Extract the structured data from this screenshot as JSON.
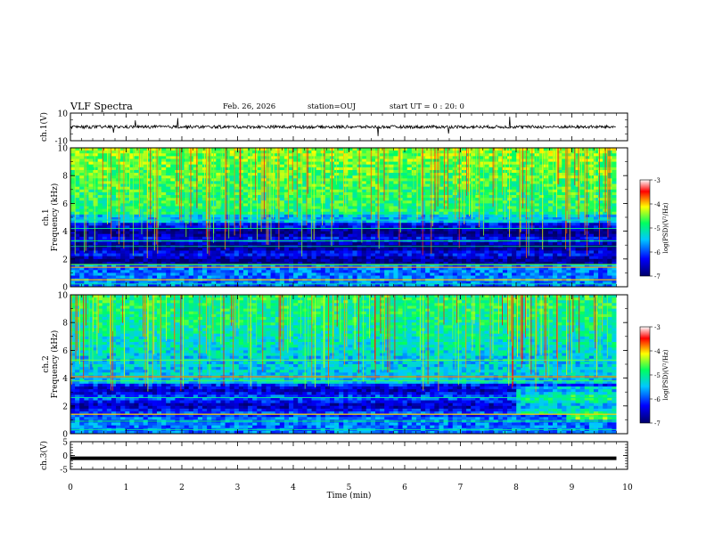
{
  "header": {
    "title": "VLF Spectra",
    "date": "Feb. 26, 2026",
    "station": "station=OUJ",
    "start": "start UT =  0 : 20: 0"
  },
  "chart_data": [
    {
      "id": "ch1-waveform",
      "type": "line",
      "ylabel": "ch.1(V)",
      "ylim": [
        -10,
        10
      ],
      "yticks": [
        10,
        -10
      ],
      "xlim": [
        0,
        10
      ],
      "baseline": 0,
      "note": "noisy waveform around 0 V with sparse spikes"
    },
    {
      "id": "ch1-spectrogram",
      "type": "heatmap",
      "ylabel": "ch.1\nFrequency (kHz)",
      "ylim": [
        0,
        10
      ],
      "yticks": [
        0,
        2,
        4,
        6,
        8,
        10
      ],
      "xlim": [
        0,
        10
      ],
      "data_end_min": 9.8,
      "colorbar": {
        "label": "log(PSD)(V²/Hz)",
        "range": [
          -7,
          -3
        ],
        "ticks": [
          -3,
          -4,
          -5,
          -6,
          -7
        ]
      }
    },
    {
      "id": "ch2-spectrogram",
      "type": "heatmap",
      "ylabel": "ch.2\nFrequency (kHz)",
      "ylim": [
        0,
        10
      ],
      "yticks": [
        0,
        2,
        4,
        6,
        8,
        10
      ],
      "xlim": [
        0,
        10
      ],
      "data_end_min": 9.8,
      "colorbar": {
        "label": "log(PSD)(V²/Hz)",
        "range": [
          -7,
          -3
        ],
        "ticks": [
          -3,
          -4,
          -5,
          -6,
          -7
        ]
      }
    },
    {
      "id": "ch3-waveform",
      "type": "line",
      "ylabel": "ch.3(V)",
      "ylim": [
        -5,
        5
      ],
      "yticks": [
        5,
        0,
        -5
      ],
      "xlim": [
        0,
        10
      ],
      "baseline": -1,
      "note": "flat thick line"
    }
  ],
  "xaxis": {
    "label": "Time (min)",
    "ticks": [
      0,
      1,
      2,
      3,
      4,
      5,
      6,
      7,
      8,
      9,
      10
    ]
  },
  "colors": {
    "colormap": [
      "#000080",
      "#0000ff",
      "#00bfff",
      "#00ff7f",
      "#ffff00",
      "#ff0000",
      "#ffffff"
    ]
  }
}
